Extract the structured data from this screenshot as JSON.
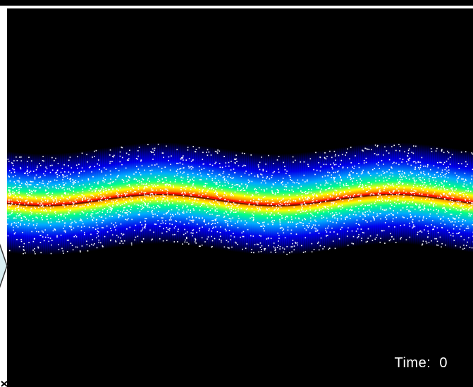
{
  "time": {
    "label": "Time",
    "separator": ":",
    "value": "0"
  },
  "colors": {
    "background": "#000000",
    "particles": "#ffffff",
    "band_core": "#ff0000",
    "band_mid": "#ffff00",
    "band_outer": "#00ff66",
    "band_edge": "#0000ff"
  },
  "icons": {
    "side_handle": "diamond-handle-icon",
    "corner": "corner-cross-icon"
  }
}
